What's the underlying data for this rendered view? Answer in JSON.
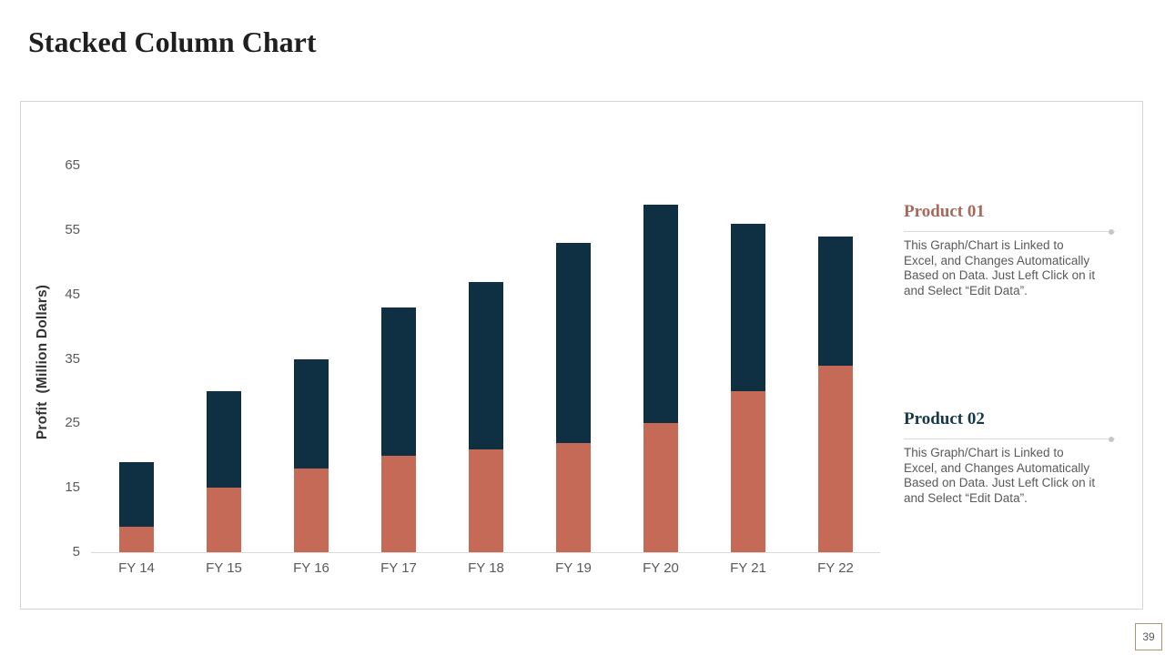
{
  "page": {
    "title": "Stacked Column Chart",
    "page_number": "39"
  },
  "chart_data": {
    "type": "bar",
    "stacked": true,
    "categories": [
      "FY 14",
      "FY 15",
      "FY 16",
      "FY 17",
      "FY 18",
      "FY 19",
      "FY 20",
      "FY 21",
      "FY 22"
    ],
    "series": [
      {
        "name": "Product 01",
        "color": "#c46a57",
        "stack_top_values": [
          9,
          15,
          18,
          20,
          21,
          22,
          25,
          30,
          34
        ]
      },
      {
        "name": "Product 02",
        "color": "#0f3042",
        "stack_top_values": [
          19,
          30,
          35,
          43,
          47,
          53,
          59,
          56,
          54
        ]
      }
    ],
    "ylabel": "Profit  (Million Dollars)",
    "xlabel": "",
    "yticks": [
      65,
      55,
      45,
      35,
      25,
      15,
      5
    ],
    "ylim": [
      5,
      65
    ],
    "grid": false,
    "legend_position": "right",
    "axis_color": "#d9d9d9",
    "tick_label_color": "#595959"
  },
  "legend": {
    "product1": {
      "title": "Product 01",
      "accent_color": "#a8685a",
      "description_lines": [
        "This Graph/Chart is Linked to",
        "Excel, and Changes Automatically",
        "Based on Data. Just Left Click on it",
        "and Select “Edit Data”."
      ]
    },
    "product2": {
      "title": "Product 02",
      "accent_color": "#16394a",
      "description_lines": [
        "This Graph/Chart is Linked to",
        "Excel, and Changes Automatically",
        "Based on Data. Just Left Click on it",
        "and Select “Edit Data”."
      ]
    }
  }
}
